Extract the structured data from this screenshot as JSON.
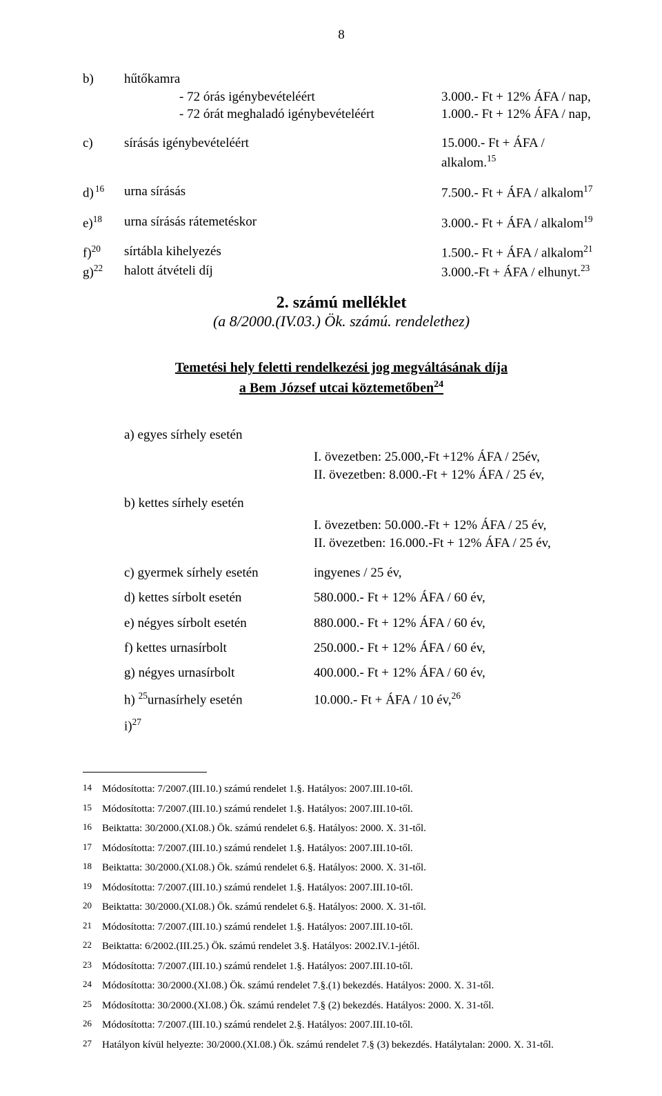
{
  "page_number": "8",
  "section_b": {
    "letter": "b)",
    "title": "hűtőkamra",
    "line1_label": "- 72 órás igénybevételéért",
    "line1_value": "3.000.- Ft + 12% ÁFA / nap,",
    "line2_label": "- 72 órát meghaladó igénybevételéért",
    "line2_value": "1.000.- Ft + 12% ÁFA / nap,"
  },
  "section_c": {
    "letter": "c)",
    "label": "sírásás igénybevételéért",
    "value": "15.000.- Ft + ÁFA / alkalom.",
    "sup": "15"
  },
  "section_d": {
    "letter": "d)",
    "letter_sup": "16",
    "label": "urna sírásás",
    "value": "7.500.- Ft + ÁFA / alkalom",
    "sup": "17"
  },
  "section_e": {
    "letter": "e)",
    "letter_sup": "18",
    "label": "urna sírásás rátemetéskor",
    "value": "3.000.- Ft + ÁFA / alkalom",
    "sup": "19"
  },
  "section_f": {
    "letter": "f)",
    "letter_sup": "20",
    "label": "sírtábla kihelyezés",
    "value": "1.500.- Ft + ÁFA / alkalom",
    "sup": "21"
  },
  "section_g": {
    "letter": "g)",
    "letter_sup": "22",
    "label": "halott átvételi díj",
    "value": "3.000.-Ft + ÁFA / elhunyt.",
    "sup": "23"
  },
  "attachment_title": "2.      számú melléklet",
  "attachment_sub": "(a 8/2000.(IV.03.) Ök. számú. rendelethez)",
  "heading_line1": "Temetési hely feletti rendelkezési jog megváltásának díja",
  "heading_line2_prefix": "a Bem József utcai köztemetőben",
  "heading_line2_sup": "24",
  "item_a": {
    "label": "a) egyes sírhely esetén",
    "v1": "I. övezetben: 25.000,-Ft +12% ÁFA / 25év,",
    "v2": "II. övezetben: 8.000.-Ft + 12% ÁFA / 25 év,"
  },
  "item_b": {
    "label": "b) kettes sírhely esetén",
    "v1": "I. övezetben: 50.000.-Ft + 12% ÁFA / 25 év,",
    "v2": "II. övezetben: 16.000.-Ft + 12% ÁFA / 25 év,"
  },
  "item_c": {
    "label": "c) gyermek sírhely esetén",
    "value": "ingyenes / 25 év,"
  },
  "item_d": {
    "label": "d) kettes sírbolt esetén",
    "value": "580.000.- Ft + 12% ÁFA / 60 év,"
  },
  "item_e": {
    "label": "e) négyes sírbolt esetén",
    "value": "880.000.- Ft + 12% ÁFA / 60 év,"
  },
  "item_f": {
    "label": "f) kettes urnasírbolt",
    "value": "250.000.- Ft + 12% ÁFA / 60 év,"
  },
  "item_g": {
    "label": "g) négyes urnasírbolt",
    "value": "400.000.- Ft + 12% ÁFA / 60 év,"
  },
  "item_h": {
    "label_prefix": "h) ",
    "label_sup": "25",
    "label_suffix": "urnasírhely esetén",
    "value": "10.000.- Ft + ÁFA / 10 év,",
    "value_sup": "26"
  },
  "item_i": {
    "label": "i)",
    "sup": "27"
  },
  "footnotes": [
    {
      "n": "14",
      "t": "Módosította: 7/2007.(III.10.) számú rendelet 1.§. Hatályos: 2007.III.10-től."
    },
    {
      "n": "15",
      "t": "Módosította: 7/2007.(III.10.) számú rendelet 1.§. Hatályos: 2007.III.10-től."
    },
    {
      "n": "16",
      "t": "Beiktatta: 30/2000.(XI.08.) Ök. számú rendelet 6.§. Hatályos: 2000. X. 31-től."
    },
    {
      "n": "17",
      "t": "Módosította: 7/2007.(III.10.) számú rendelet 1.§. Hatályos: 2007.III.10-től."
    },
    {
      "n": "18",
      "t": "Beiktatta: 30/2000.(XI.08.) Ök. számú rendelet 6.§. Hatályos: 2000. X. 31-től."
    },
    {
      "n": "19",
      "t": "Módosította: 7/2007.(III.10.) számú rendelet 1.§. Hatályos: 2007.III.10-től."
    },
    {
      "n": "20",
      "t": "Beiktatta: 30/2000.(XI.08.) Ök. számú rendelet 6.§. Hatályos: 2000. X. 31-től."
    },
    {
      "n": "21",
      "t": "Módosította: 7/2007.(III.10.) számú rendelet 1.§. Hatályos: 2007.III.10-től."
    },
    {
      "n": "22",
      "t": "Beiktatta: 6/2002.(III.25.) Ök. számú rendelet 3.§. Hatályos: 2002.IV.1-jétől."
    },
    {
      "n": "23",
      "t": "Módosította: 7/2007.(III.10.) számú rendelet 1.§. Hatályos: 2007.III.10-től."
    },
    {
      "n": "24",
      "t": "Módosította: 30/2000.(XI.08.) Ök. számú rendelet 7.§.(1) bekezdés. Hatályos: 2000. X. 31-től."
    },
    {
      "n": "25",
      "t": "Módosította: 30/2000.(XI.08.) Ök. számú rendelet 7.§ (2) bekezdés. Hatályos: 2000. X. 31-től."
    },
    {
      "n": "26",
      "t": "Módosította: 7/2007.(III.10.) számú rendelet 2.§. Hatályos: 2007.III.10-től."
    },
    {
      "n": "27",
      "t": "Hatályon kívül helyezte: 30/2000.(XI.08.) Ök. számú rendelet 7.§ (3) bekezdés. Hatálytalan: 2000. X. 31-től."
    }
  ]
}
